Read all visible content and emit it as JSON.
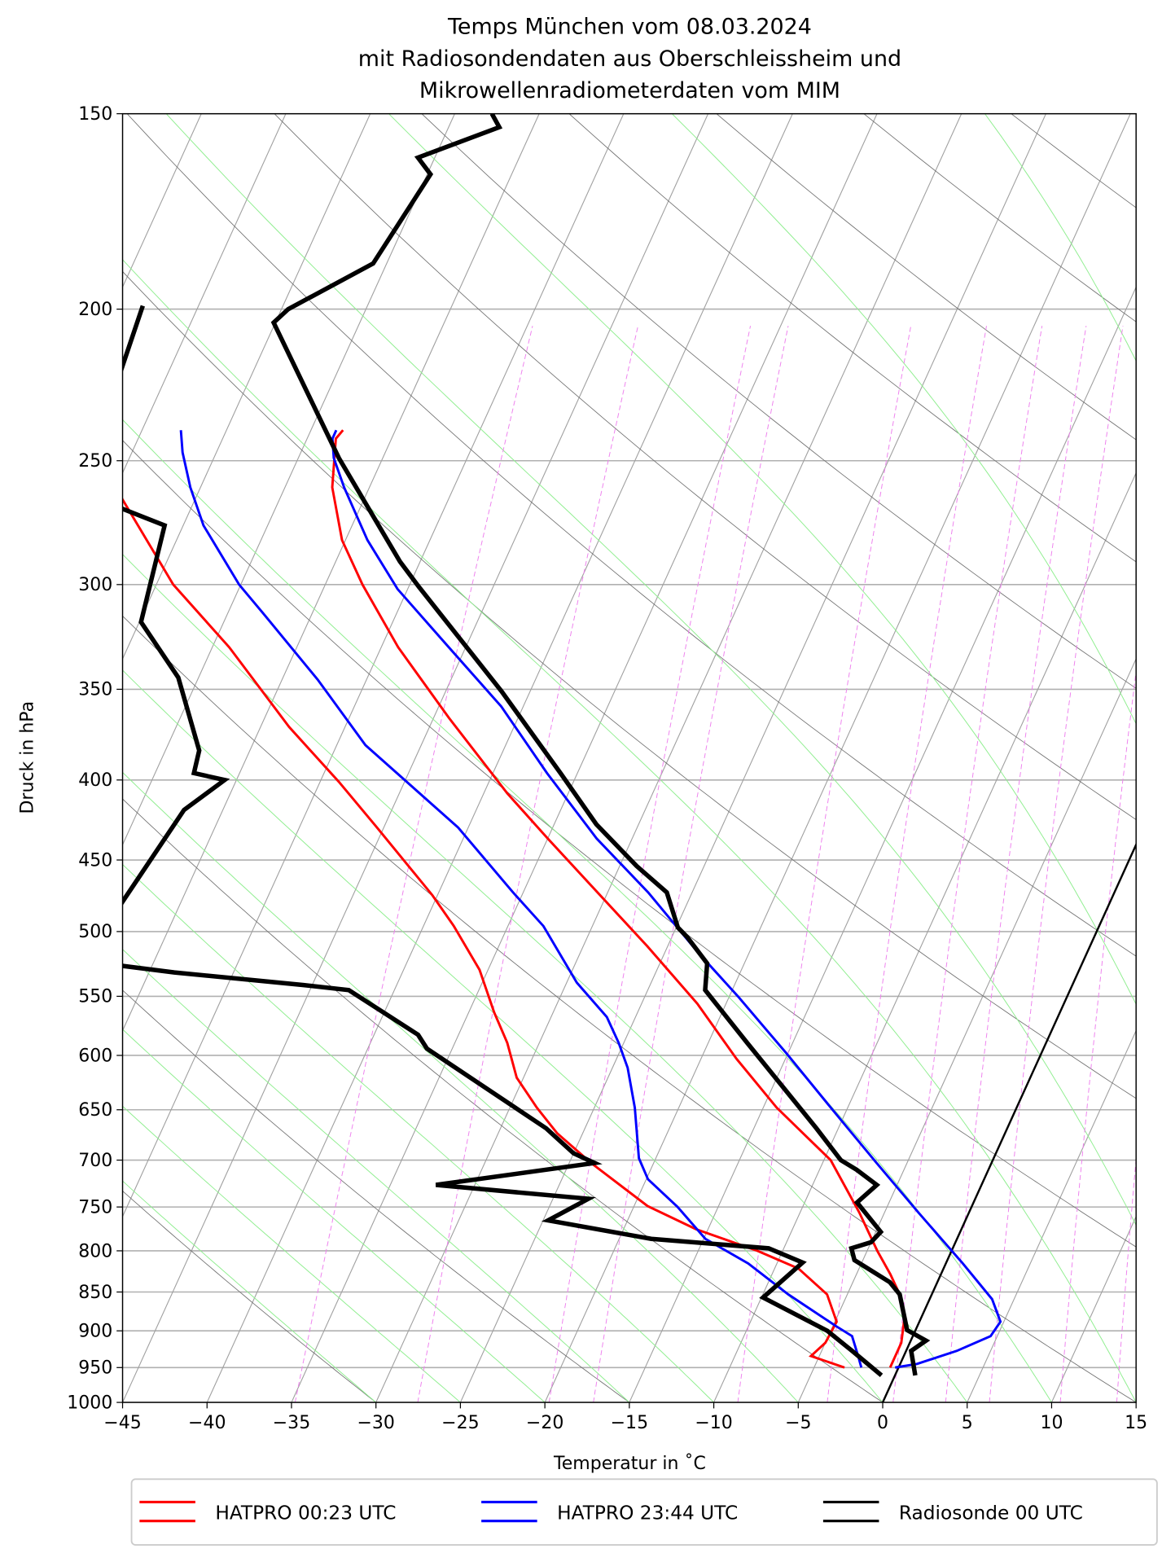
{
  "chart_data": {
    "type": "line",
    "subtype": "skew-t log-p",
    "title": [
      "Temps München vom 08.03.2024",
      "mit Radiosondendaten aus Oberschleissheim und",
      "Mikrowellenradiometerdaten vom MIM"
    ],
    "xlabel": "Temperatur in $^\\circ$C",
    "xlabel_display": "Temperatur in ˚C",
    "ylabel": "Druck in hPa",
    "xlim": [
      -45,
      15
    ],
    "ylim": [
      1000,
      150
    ],
    "yscale": "log",
    "grid": true,
    "legend_position": "bottom-center",
    "x_ticks": [
      "−45",
      "−40",
      "−35",
      "−30",
      "−25",
      "−20",
      "−15",
      "−10",
      "−5",
      "0",
      "5",
      "10",
      "15"
    ],
    "x_tick_values": [
      -45,
      -40,
      -35,
      -30,
      -25,
      -20,
      -15,
      -10,
      -5,
      0,
      5,
      10,
      15
    ],
    "y_ticks": [
      "150",
      "200",
      "250",
      "300",
      "350",
      "400",
      "450",
      "500",
      "550",
      "600",
      "650",
      "700",
      "750",
      "800",
      "850",
      "900",
      "950",
      "1000"
    ],
    "y_tick_values": [
      150,
      200,
      250,
      300,
      350,
      400,
      450,
      500,
      550,
      600,
      650,
      700,
      750,
      800,
      850,
      900,
      950,
      1000
    ],
    "series": [
      {
        "name": "HATPRO 00:23 UTC",
        "color": "#ff0000",
        "temperature": [
          [
            -0.5,
            950
          ],
          [
            -0.5,
            916
          ],
          [
            -1.0,
            882
          ],
          [
            -1.9,
            853
          ],
          [
            -3.0,
            828
          ],
          [
            -4.4,
            800
          ],
          [
            -6.5,
            756
          ],
          [
            -9.6,
            700
          ],
          [
            -14.2,
            648
          ],
          [
            -17.9,
            603
          ],
          [
            -21.7,
            556
          ],
          [
            -26.2,
            511
          ],
          [
            -30.6,
            472
          ],
          [
            -35.0,
            436
          ],
          [
            -38.6,
            408
          ],
          [
            -44.1,
            365
          ],
          [
            -49.0,
            329
          ],
          [
            -52.8,
            300
          ],
          [
            -55.2,
            281
          ],
          [
            -57.2,
            260
          ],
          [
            -58.3,
            242
          ],
          [
            -58.1,
            239
          ]
        ],
        "dewpoint": [
          [
            -3.2,
            950
          ],
          [
            -5.5,
            934
          ],
          [
            -5.0,
            916
          ],
          [
            -4.9,
            888
          ],
          [
            -6.2,
            853
          ],
          [
            -8.6,
            821
          ],
          [
            -11.5,
            800
          ],
          [
            -15.7,
            775
          ],
          [
            -19.2,
            749
          ],
          [
            -23.7,
            703
          ],
          [
            -26.5,
            673
          ],
          [
            -28.4,
            648
          ],
          [
            -30.4,
            620
          ],
          [
            -31.9,
            589
          ],
          [
            -33.5,
            563
          ],
          [
            -35.5,
            529
          ],
          [
            -38.2,
            496
          ],
          [
            -40.3,
            474
          ],
          [
            -45.4,
            429
          ],
          [
            -48.9,
            401
          ],
          [
            -53.3,
            370
          ],
          [
            -59.0,
            329
          ],
          [
            -64.0,
            300
          ],
          [
            -69.4,
            264
          ]
        ]
      },
      {
        "name": "HATPRO 23:44 UTC",
        "color": "#0000ff",
        "temperature": [
          [
            -0.2,
            950
          ],
          [
            1.0,
            945
          ],
          [
            3.0,
            927
          ],
          [
            4.6,
            907
          ],
          [
            4.8,
            888
          ],
          [
            3.7,
            859
          ],
          [
            1.0,
            815
          ],
          [
            -3.0,
            756
          ],
          [
            -6.8,
            703
          ],
          [
            -11.0,
            648
          ],
          [
            -15.1,
            598
          ],
          [
            -19.5,
            550
          ],
          [
            -23.1,
            515
          ],
          [
            -27.6,
            472
          ],
          [
            -32.1,
            436
          ],
          [
            -36.8,
            396
          ],
          [
            -41.3,
            359
          ],
          [
            -46.0,
            329
          ],
          [
            -50.6,
            302
          ],
          [
            -53.7,
            281
          ],
          [
            -56.5,
            260
          ],
          [
            -57.9,
            249
          ],
          [
            -58.5,
            242
          ],
          [
            -58.5,
            239
          ]
        ],
        "dewpoint": [
          [
            -2.2,
            950
          ],
          [
            -2.7,
            934
          ],
          [
            -3.6,
            907
          ],
          [
            -4.8,
            894
          ],
          [
            -8.5,
            853
          ],
          [
            -11.7,
            815
          ],
          [
            -14.9,
            786
          ],
          [
            -17.4,
            750
          ],
          [
            -19.9,
            720
          ],
          [
            -21.0,
            698
          ],
          [
            -22.6,
            648
          ],
          [
            -24.1,
            611
          ],
          [
            -25.3,
            589
          ],
          [
            -26.7,
            567
          ],
          [
            -29.4,
            539
          ],
          [
            -32.9,
            496
          ],
          [
            -35.6,
            472
          ],
          [
            -40.6,
            429
          ],
          [
            -48.3,
            380
          ],
          [
            -52.9,
            345
          ],
          [
            -57.9,
            313
          ],
          [
            -60.1,
            300
          ],
          [
            -63.8,
            275
          ],
          [
            -65.6,
            260
          ],
          [
            -67.0,
            247
          ],
          [
            -67.7,
            239
          ]
        ]
      },
      {
        "name": "Radiosonde 00 UTC",
        "color": "#000000",
        "temperature": [
          [
            1.2,
            961
          ],
          [
            0.3,
            927
          ],
          [
            0.9,
            913
          ],
          [
            -0.5,
            899
          ],
          [
            -1.9,
            853
          ],
          [
            -2.8,
            838
          ],
          [
            -5.5,
            811
          ],
          [
            -6.0,
            797
          ],
          [
            -5.0,
            790
          ],
          [
            -4.7,
            778
          ],
          [
            -6.9,
            745
          ],
          [
            -6.2,
            726
          ],
          [
            -7.8,
            710
          ],
          [
            -9.0,
            700
          ],
          [
            -11.3,
            668
          ],
          [
            -17.7,
            589
          ],
          [
            -21.6,
            545
          ],
          [
            -22.2,
            524
          ],
          [
            -24.1,
            504
          ],
          [
            -24.9,
            497
          ],
          [
            -26.5,
            472
          ],
          [
            -29.0,
            454
          ],
          [
            -32.5,
            427
          ],
          [
            -36.0,
            396
          ],
          [
            -41.7,
            351
          ],
          [
            -49.4,
            301
          ],
          [
            -51.2,
            290
          ],
          [
            -57.6,
            249
          ],
          [
            -65.1,
            204
          ],
          [
            -64.6,
            200
          ],
          [
            -60.8,
            187
          ],
          [
            -59.8,
            164
          ],
          [
            -61.0,
            160
          ],
          [
            -57.0,
            153
          ],
          [
            -57.8,
            150
          ]
        ],
        "dewpoint": [
          [
            -0.8,
            961
          ],
          [
            -3.2,
            927
          ],
          [
            -5.2,
            900
          ],
          [
            -9.9,
            857
          ],
          [
            -8.5,
            814
          ],
          [
            -10.9,
            797
          ],
          [
            -18.1,
            786
          ],
          [
            -24.7,
            765
          ],
          [
            -22.9,
            741
          ],
          [
            -32.3,
            726
          ],
          [
            -23.5,
            703
          ],
          [
            -25.0,
            693
          ],
          [
            -27.3,
            668
          ],
          [
            -36.5,
            594
          ],
          [
            -37.4,
            582
          ],
          [
            -42.7,
            545
          ],
          [
            -45.5,
            541
          ],
          [
            -53.5,
            531
          ],
          [
            -58.0,
            524
          ],
          [
            -62.0,
            505
          ],
          [
            -58.5,
            480
          ],
          [
            -57.3,
            418
          ],
          [
            -55.7,
            400
          ],
          [
            -57.7,
            396
          ],
          [
            -58.0,
            383
          ],
          [
            -61.2,
            344
          ],
          [
            -64.9,
            317
          ],
          [
            -66.1,
            275
          ],
          [
            -69.2,
            268
          ],
          [
            -76.0,
            252
          ],
          [
            -72.5,
            236
          ],
          [
            -73.3,
            199
          ]
        ]
      }
    ],
    "background_lines": {
      "isotherm_color": "#a0a0a0",
      "dry_adiabat_color": "#707070",
      "moist_adiabat_color": "#90ee90",
      "mixing_ratio_color": "#ee82ee",
      "reference_isotherm_0C_color": "#000000"
    }
  },
  "legend": [
    {
      "label": "HATPRO 00:23 UTC",
      "color": "#ff0000"
    },
    {
      "label": "HATPRO 23:44 UTC",
      "color": "#0000ff"
    },
    {
      "label": "Radiosonde 00 UTC",
      "color": "#000000"
    }
  ]
}
